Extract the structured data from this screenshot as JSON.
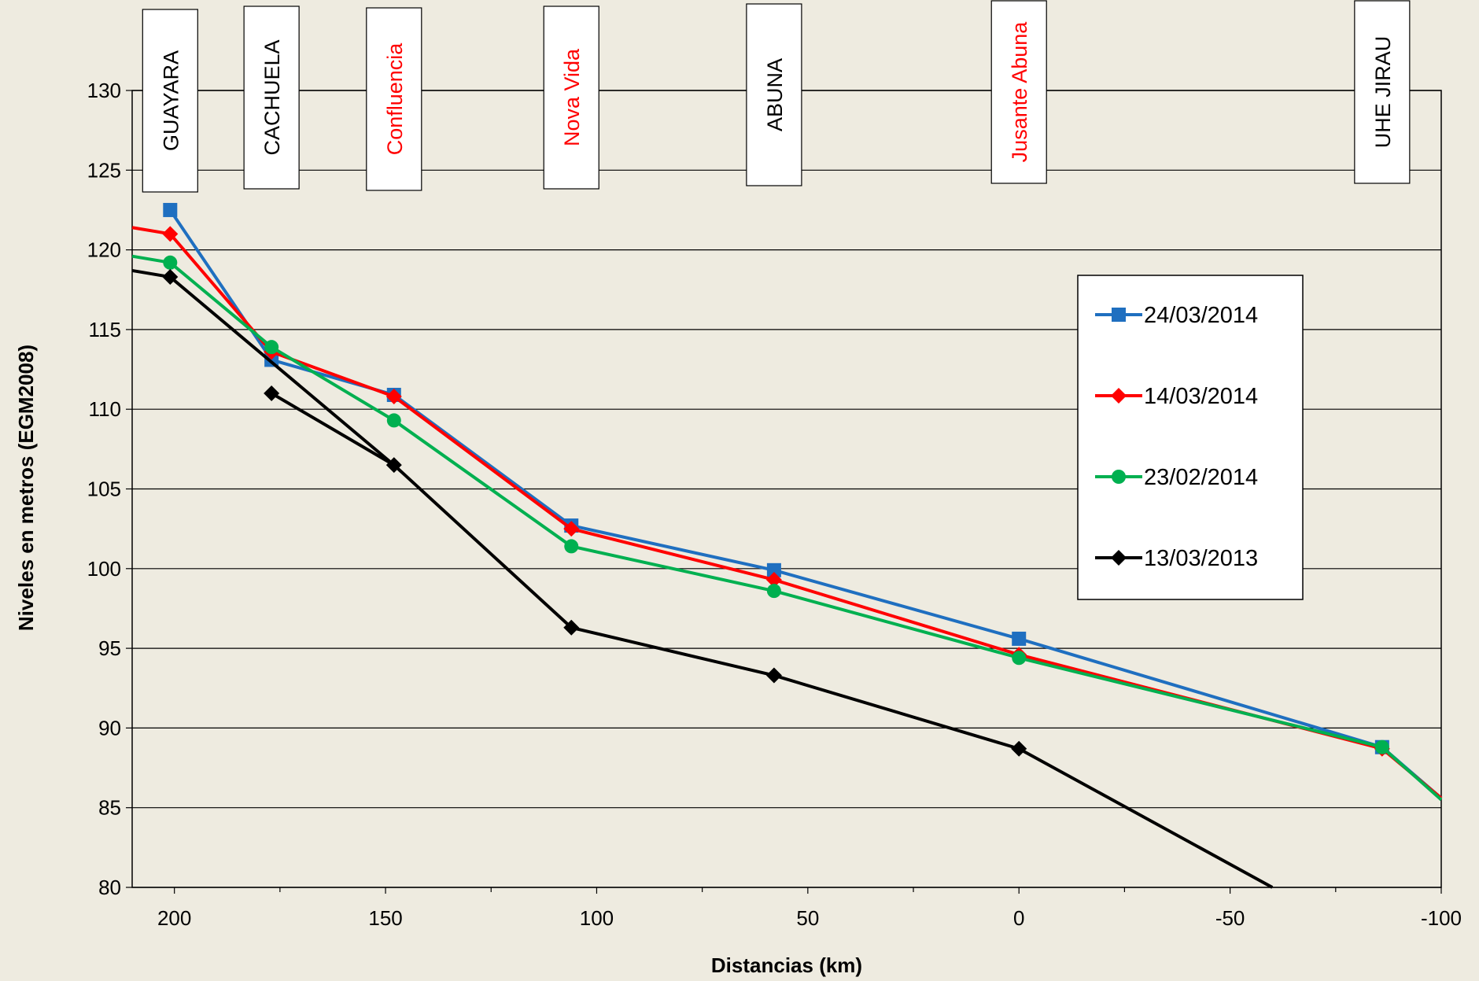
{
  "chart_data": {
    "type": "line",
    "xlabel": "Distancias (km)",
    "ylabel": "Niveles en metros  (EGM2008)",
    "xlim": [
      210,
      -100
    ],
    "ylim": [
      80,
      130
    ],
    "x_ticks": [
      200,
      150,
      100,
      50,
      0,
      -50,
      -100
    ],
    "y_ticks": [
      80,
      85,
      90,
      95,
      100,
      105,
      110,
      115,
      120,
      125,
      130
    ],
    "grid": "horizontal",
    "legend_position": "right",
    "stations": [
      {
        "label": "GUAYARA",
        "x": 201,
        "color": "#000000"
      },
      {
        "label": "CACHUELA",
        "x": 177,
        "color": "#000000"
      },
      {
        "label": "Confluencia",
        "x": 148,
        "color": "#FF0000"
      },
      {
        "label": "Nova Vida",
        "x": 106,
        "color": "#FF0000"
      },
      {
        "label": "ABUNA",
        "x": 58,
        "color": "#000000"
      },
      {
        "label": "Jusante Abuna",
        "x": 0,
        "color": "#FF0000"
      },
      {
        "label": "UHE JIRAU",
        "x": -86,
        "color": "#000000"
      }
    ],
    "series": [
      {
        "name": "24/03/2014",
        "color": "#1F6FC0",
        "marker": "square",
        "points": [
          [
            201,
            122.5
          ],
          [
            177,
            113.1
          ],
          [
            148,
            110.9
          ],
          [
            106,
            102.7
          ],
          [
            58,
            99.9
          ],
          [
            0,
            95.6
          ],
          [
            -86,
            88.8
          ]
        ],
        "tail": [
          [
            -100,
            85.6
          ]
        ]
      },
      {
        "name": "14/03/2014",
        "color": "#FF0000",
        "marker": "diamond",
        "points": [
          [
            201,
            121.0
          ],
          [
            177,
            113.6
          ],
          [
            148,
            110.8
          ],
          [
            106,
            102.5
          ],
          [
            58,
            99.3
          ],
          [
            0,
            94.6
          ],
          [
            -86,
            88.7
          ]
        ],
        "head": [
          [
            210,
            121.4
          ]
        ],
        "tail": [
          [
            -100,
            85.6
          ]
        ]
      },
      {
        "name": "23/02/2014",
        "color": "#00B050",
        "marker": "circle",
        "points": [
          [
            201,
            119.2
          ],
          [
            177,
            113.9
          ],
          [
            148,
            109.3
          ],
          [
            106,
            101.4
          ],
          [
            58,
            98.6
          ],
          [
            0,
            94.4
          ],
          [
            -86,
            88.8
          ]
        ],
        "head": [
          [
            210,
            119.6
          ]
        ],
        "tail": [
          [
            -100,
            85.5
          ]
        ]
      },
      {
        "name": "13/03/2013",
        "color": "#000000",
        "marker": "diamond",
        "points": [
          [
            201,
            118.3
          ],
          [
            148,
            106.5
          ],
          [
            106,
            96.3
          ],
          [
            58,
            93.3
          ],
          [
            0,
            88.7
          ]
        ],
        "head": [
          [
            210,
            118.7
          ]
        ],
        "tail": [
          [
            -60,
            80.0
          ]
        ],
        "extra_segment": [
          [
            177,
            111.0
          ],
          [
            148,
            106.5
          ]
        ]
      }
    ]
  }
}
